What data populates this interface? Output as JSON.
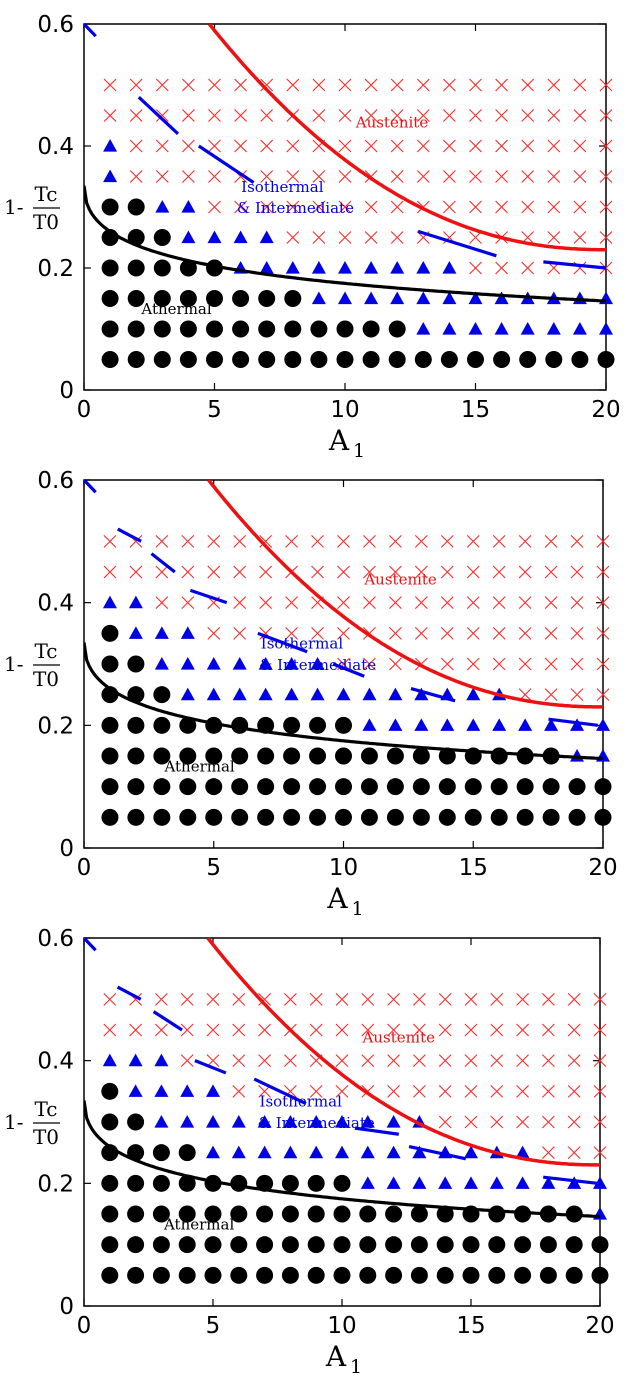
{
  "colors": {
    "martensite": "#000000",
    "boundary_marker": "#0000e6",
    "austenite_marker": "#ff2a2a",
    "austenite_curve": "#ee1111",
    "isothermal_line": "#0000e6",
    "athermal_curve": "#000000"
  },
  "chart_data": [
    {
      "type": "scatter",
      "xlim": [
        0,
        20
      ],
      "ylim": [
        0,
        0.6
      ],
      "xticks": [
        "0",
        "5",
        "10",
        "15",
        "20"
      ],
      "yticks": [
        "0",
        "0.2",
        "0.4",
        "0.6"
      ],
      "xlabel": "A",
      "xlabel_sub": "1",
      "ylabel_prefix": "1-",
      "ylabel_num": "Tc",
      "ylabel_den": "T0",
      "labels": {
        "austenite": "Austenite",
        "isothermal_1": "Isothermal",
        "isothermal_2": "& Intermediate",
        "athermal": "Athermal"
      },
      "austenite_start": [
        [
          1,
          0.45
        ],
        [
          1,
          0.5
        ]
      ],
      "rows": [
        {
          "y": 0.05,
          "circles": [
            1,
            20
          ],
          "triangles": null,
          "crosses": null
        },
        {
          "y": 0.1,
          "circles": [
            1,
            12
          ],
          "triangles": [
            13,
            20
          ],
          "crosses": null
        },
        {
          "y": 0.15,
          "circles": [
            1,
            8
          ],
          "triangles": [
            9,
            20
          ],
          "crosses": null
        },
        {
          "y": 0.2,
          "circles": [
            1,
            5
          ],
          "triangles": [
            6,
            14
          ],
          "crosses": [
            15,
            20
          ]
        },
        {
          "y": 0.25,
          "circles": [
            1,
            3
          ],
          "triangles": [
            4,
            7
          ],
          "crosses": [
            8,
            20
          ]
        },
        {
          "y": 0.3,
          "circles": [
            1,
            2
          ],
          "triangles": [
            3,
            4
          ],
          "crosses": [
            5,
            20
          ]
        },
        {
          "y": 0.35,
          "circles": null,
          "triangles": [
            1,
            1
          ],
          "crosses": [
            2,
            20
          ]
        },
        {
          "y": 0.4,
          "circles": null,
          "triangles": [
            1,
            1
          ],
          "crosses": [
            2,
            20
          ]
        },
        {
          "y": 0.45,
          "circles": null,
          "triangles": null,
          "crosses": [
            1,
            20
          ]
        },
        {
          "y": 0.5,
          "circles": null,
          "triangles": null,
          "crosses": [
            1,
            20
          ]
        }
      ],
      "curve_athermal": {
        "a": 0.335,
        "b": 0.29
      },
      "curve_austenite": {
        "a": 0.435,
        "b": 0.42,
        "x_start": 4.8
      },
      "isothermal_segments": [
        [
          0,
          0.6,
          0.45,
          0.58
        ],
        [
          2.1,
          0.48,
          3.6,
          0.42
        ],
        [
          4.4,
          0.4,
          6.5,
          0.34
        ],
        [
          12.8,
          0.26,
          15.8,
          0.22
        ],
        [
          17.6,
          0.21,
          20,
          0.2
        ]
      ]
    },
    {
      "type": "scatter",
      "xlim": [
        0,
        20
      ],
      "ylim": [
        0,
        0.6
      ],
      "xticks": [
        "0",
        "5",
        "10",
        "15",
        "20"
      ],
      "yticks": [
        "0",
        "0.2",
        "0.4",
        "0.6"
      ],
      "xlabel": "A",
      "xlabel_sub": "1",
      "ylabel_prefix": "1-",
      "ylabel_num": "Tc",
      "ylabel_den": "T0",
      "labels": {
        "austenite": "Austenite",
        "isothermal_1": "Isothermal",
        "isothermal_2": "& Intermediate",
        "athermal": "Athermal"
      },
      "rows": [
        {
          "y": 0.05,
          "circles": [
            1,
            20
          ],
          "triangles": null,
          "crosses": null
        },
        {
          "y": 0.1,
          "circles": [
            1,
            20
          ],
          "triangles": null,
          "crosses": null
        },
        {
          "y": 0.15,
          "circles": [
            1,
            18
          ],
          "triangles": [
            19,
            20
          ],
          "crosses": null
        },
        {
          "y": 0.2,
          "circles": [
            1,
            10
          ],
          "triangles": [
            11,
            20
          ],
          "crosses": null
        },
        {
          "y": 0.25,
          "circles": [
            1,
            3
          ],
          "triangles": [
            4,
            16
          ],
          "crosses": [
            17,
            20
          ]
        },
        {
          "y": 0.3,
          "circles": [
            1,
            2
          ],
          "triangles": [
            3,
            9
          ],
          "crosses": [
            10,
            20
          ]
        },
        {
          "y": 0.35,
          "circles": [
            1,
            1
          ],
          "triangles": [
            2,
            4
          ],
          "crosses": [
            5,
            20
          ]
        },
        {
          "y": 0.4,
          "circles": null,
          "triangles": [
            1,
            2
          ],
          "crosses": [
            3,
            20
          ]
        },
        {
          "y": 0.45,
          "circles": null,
          "triangles": null,
          "crosses": [
            1,
            20
          ]
        },
        {
          "y": 0.5,
          "circles": null,
          "triangles": null,
          "crosses": [
            1,
            20
          ]
        }
      ],
      "curve_athermal": {
        "a": 0.335,
        "b": 0.29
      },
      "curve_austenite": {
        "a": 0.435,
        "b": 0.42,
        "x_start": 4.8
      },
      "isothermal_segments": [
        [
          0,
          0.6,
          0.45,
          0.58
        ],
        [
          1.3,
          0.52,
          2.2,
          0.5
        ],
        [
          2.6,
          0.48,
          3.5,
          0.45
        ],
        [
          4.1,
          0.42,
          5.5,
          0.4
        ],
        [
          6.7,
          0.35,
          8.6,
          0.32
        ],
        [
          9.6,
          0.3,
          10.8,
          0.28
        ],
        [
          12.6,
          0.26,
          14.3,
          0.24
        ],
        [
          17.9,
          0.21,
          19.8,
          0.2
        ]
      ]
    },
    {
      "type": "scatter",
      "xlim": [
        0,
        20
      ],
      "ylim": [
        0,
        0.6
      ],
      "xticks": [
        "0",
        "5",
        "10",
        "15",
        "20"
      ],
      "yticks": [
        "0",
        "0.2",
        "0.4",
        "0.6"
      ],
      "xlabel": "A",
      "xlabel_sub": "1",
      "ylabel_prefix": "1-",
      "ylabel_num": "Tc",
      "ylabel_den": "T0",
      "labels": {
        "austenite": "Austenite",
        "isothermal_1": "Isothermal",
        "isothermal_2": "& Intermediate",
        "athermal": "Athermal"
      },
      "rows": [
        {
          "y": 0.05,
          "circles": [
            1,
            20
          ],
          "triangles": null,
          "crosses": null
        },
        {
          "y": 0.1,
          "circles": [
            1,
            20
          ],
          "triangles": null,
          "crosses": null
        },
        {
          "y": 0.15,
          "circles": [
            1,
            19
          ],
          "triangles": [
            20,
            20
          ],
          "crosses": null
        },
        {
          "y": 0.2,
          "circles": [
            1,
            10
          ],
          "triangles": [
            11,
            20
          ],
          "crosses": null
        },
        {
          "y": 0.25,
          "circles": [
            1,
            4
          ],
          "triangles": [
            5,
            17
          ],
          "crosses": [
            18,
            20
          ]
        },
        {
          "y": 0.3,
          "circles": [
            1,
            2
          ],
          "triangles": [
            3,
            13
          ],
          "crosses": [
            14,
            20
          ]
        },
        {
          "y": 0.35,
          "circles": [
            1,
            1
          ],
          "triangles": [
            2,
            5
          ],
          "crosses": [
            6,
            20
          ]
        },
        {
          "y": 0.4,
          "circles": null,
          "triangles": [
            1,
            3
          ],
          "crosses": [
            4,
            20
          ]
        },
        {
          "y": 0.45,
          "circles": null,
          "triangles": null,
          "crosses": [
            1,
            20
          ]
        },
        {
          "y": 0.5,
          "circles": null,
          "triangles": null,
          "crosses": [
            1,
            20
          ]
        }
      ],
      "curve_athermal": {
        "a": 0.335,
        "b": 0.29
      },
      "curve_austenite": {
        "a": 0.435,
        "b": 0.42,
        "x_start": 4.8
      },
      "isothermal_segments": [
        [
          0,
          0.6,
          0.45,
          0.58
        ],
        [
          1.3,
          0.52,
          2.2,
          0.5
        ],
        [
          2.7,
          0.48,
          3.8,
          0.45
        ],
        [
          4.3,
          0.4,
          5.5,
          0.38
        ],
        [
          6.6,
          0.37,
          8.6,
          0.33
        ],
        [
          10.5,
          0.29,
          12.2,
          0.28
        ],
        [
          12.6,
          0.26,
          14.8,
          0.24
        ],
        [
          17.8,
          0.21,
          19.9,
          0.2
        ]
      ]
    }
  ]
}
